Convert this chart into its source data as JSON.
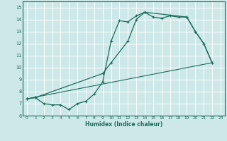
{
  "xlabel": "Humidex (Indice chaleur)",
  "xlim": [
    -0.5,
    23.5
  ],
  "ylim": [
    6,
    15.5
  ],
  "yticks": [
    6,
    7,
    8,
    9,
    10,
    11,
    12,
    13,
    14,
    15
  ],
  "xticks": [
    0,
    1,
    2,
    3,
    4,
    5,
    6,
    7,
    8,
    9,
    10,
    11,
    12,
    13,
    14,
    15,
    16,
    17,
    18,
    19,
    20,
    21,
    22,
    23
  ],
  "bg_color": "#cce8e8",
  "grid_color": "#b0d0d0",
  "line_color": "#1a6b5a",
  "line1_x": [
    0,
    1,
    2,
    3,
    4,
    5,
    6,
    7,
    8,
    9,
    10,
    11,
    12,
    13,
    14,
    15,
    16,
    17,
    18,
    19,
    20,
    21,
    22
  ],
  "line1_y": [
    7.4,
    7.5,
    7.0,
    6.9,
    6.9,
    6.5,
    7.0,
    7.2,
    7.8,
    8.8,
    12.2,
    13.9,
    13.8,
    14.3,
    14.6,
    14.2,
    14.1,
    14.3,
    14.2,
    14.2,
    13.0,
    12.0,
    10.4
  ],
  "line2_x": [
    0,
    1,
    9,
    10,
    12,
    13,
    14,
    19,
    20,
    21,
    22
  ],
  "line2_y": [
    7.4,
    7.5,
    9.5,
    10.4,
    12.2,
    14.0,
    14.6,
    14.2,
    13.0,
    12.0,
    10.4
  ],
  "line3_x": [
    0,
    22
  ],
  "line3_y": [
    7.4,
    10.4
  ]
}
